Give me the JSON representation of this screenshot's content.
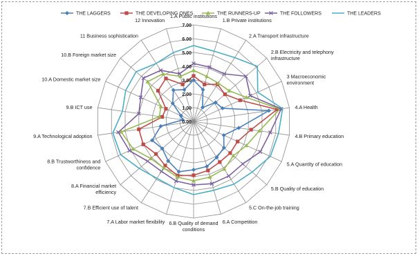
{
  "chart_data": {
    "type": "radar",
    "title": "",
    "rlim": [
      0,
      7
    ],
    "ticks": [
      "0.00",
      "1.00",
      "2.00",
      "3.00",
      "4.00",
      "5.00",
      "6.00",
      "7.00"
    ],
    "tick_values": [
      0,
      1,
      2,
      3,
      4,
      5,
      6,
      7
    ],
    "grid": true,
    "legend_position": "top",
    "axes": [
      "1.A Public institutions",
      "1.B Private institutions",
      "2.A Transport infrastructure",
      "2.B Electricity and telephony infrastructure",
      "3 Macroeconomic environment",
      "4.A Health",
      "4.B Primary education",
      "5.A Quantity of education",
      "5.B Quality of education",
      "5.C On-the-job training",
      "6.A Competition",
      "6.B Quality of demand conditions",
      "7.A Labor market flexibility",
      "7.B Efficient use of talent",
      "8.A Financial market efficiency",
      "8.B Trustworthiness and confidence",
      "9.A Technological adoption",
      "9.B ICT use",
      "10.A Domestic market size",
      "10.B Foreign market size",
      "11 Business sophistication",
      "12 Innovation"
    ],
    "series": [
      {
        "name": "THE LAGGERS",
        "color": "#4a7ebb",
        "values": [
          3.0,
          2.4,
          1.2,
          2.1,
          2.3,
          5.5,
          3.3,
          2.4,
          2.9,
          3.1,
          3.4,
          3.5,
          3.8,
          3.4,
          3.0,
          3.3,
          2.4,
          0.8,
          1.0,
          2.0,
          2.7,
          2.4
        ]
      },
      {
        "name": "THE DEVELOPING ONES",
        "color": "#be4b48",
        "values": [
          3.3,
          2.8,
          3.2,
          3.0,
          3.7,
          6.1,
          4.2,
          3.5,
          3.5,
          3.5,
          3.7,
          3.9,
          4.1,
          3.8,
          3.6,
          4.0,
          4.0,
          2.3,
          2.2,
          3.4,
          3.7,
          2.8
        ]
      },
      {
        "name": "THE RUNNERS-UP",
        "color": "#98b954",
        "values": [
          3.7,
          3.4,
          3.3,
          3.4,
          4.2,
          6.3,
          4.8,
          4.2,
          3.8,
          4.1,
          4.2,
          4.3,
          4.2,
          4.0,
          4.1,
          4.8,
          5.3,
          2.5,
          2.6,
          4.4,
          4.1,
          3.4
        ]
      },
      {
        "name": "THE FOLLOWERS",
        "color": "#7d60a0",
        "values": [
          4.2,
          4.1,
          4.1,
          5.0,
          4.5,
          6.4,
          5.6,
          5.3,
          4.7,
          4.7,
          4.7,
          4.6,
          4.5,
          4.3,
          4.4,
          5.1,
          5.5,
          4.0,
          4.2,
          4.8,
          4.4,
          3.6
        ]
      },
      {
        "name": "THE LEADERS",
        "color": "#4bacc6",
        "values": [
          5.5,
          5.3,
          5.5,
          6.1,
          5.1,
          6.5,
          6.2,
          6.1,
          5.6,
          5.4,
          5.2,
          5.3,
          5.0,
          4.9,
          5.2,
          5.8,
          5.9,
          5.2,
          5.4,
          5.5,
          5.0,
          5.2
        ]
      }
    ]
  }
}
